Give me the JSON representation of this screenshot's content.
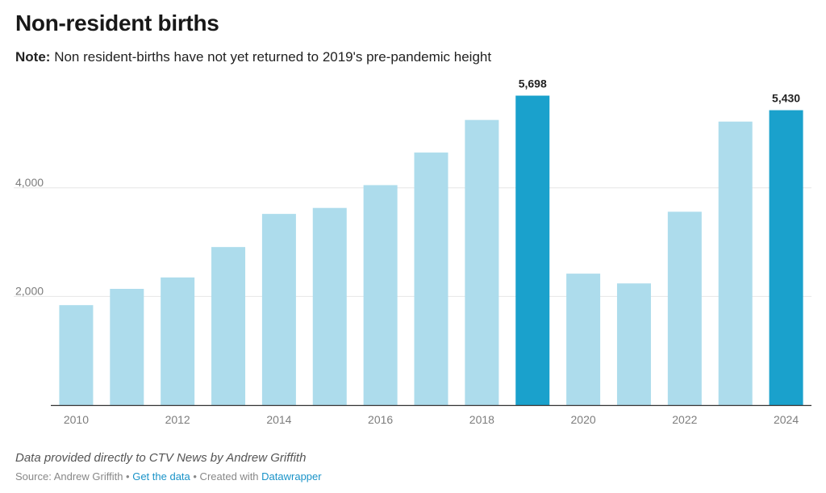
{
  "header": {
    "title": "Non-resident births",
    "note_label": "Note:",
    "note_text": "Non resident-births have not yet returned to 2019's pre-pandemic height"
  },
  "chart_data": {
    "type": "bar",
    "categories": [
      "2010",
      "2011",
      "2012",
      "2013",
      "2014",
      "2015",
      "2016",
      "2017",
      "2018",
      "2019",
      "2020",
      "2021",
      "2022",
      "2023",
      "2024"
    ],
    "values": [
      1840,
      2140,
      2350,
      2910,
      3520,
      3630,
      4050,
      4650,
      5250,
      5698,
      2420,
      2240,
      3560,
      5220,
      5430
    ],
    "highlighted": [
      "2019",
      "2024"
    ],
    "data_labels": {
      "2019": "5,698",
      "2024": "5,430"
    },
    "x_tick_labels": [
      "2010",
      "2012",
      "2014",
      "2016",
      "2018",
      "2020",
      "2022",
      "2024"
    ],
    "y_ticks": [
      2000,
      4000
    ],
    "y_tick_labels": [
      "2,000",
      "4,000"
    ],
    "ylim": [
      0,
      6000
    ],
    "xlabel": "",
    "ylabel": "",
    "colors": {
      "base": "#addcec",
      "highlight": "#1aa1cc",
      "gridline": "#e6e6e6",
      "baseline": "#333333",
      "tick_text": "#7d7d7d"
    }
  },
  "footer": {
    "caption": "Data provided directly to CTV News by Andrew Griffith",
    "source_prefix": "Source: Andrew Griffith • ",
    "get_data_label": "Get the data",
    "created_prefix": " • Created with ",
    "datawrapper_label": "Datawrapper"
  }
}
